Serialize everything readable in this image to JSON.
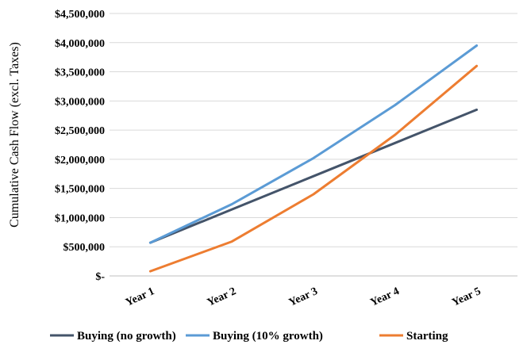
{
  "chart_data": {
    "type": "line",
    "title": "",
    "xlabel": "",
    "ylabel": "Cumulative Cash Flow (excl. Taxes)",
    "categories": [
      "Year 1",
      "Year 2",
      "Year 3",
      "Year 4",
      "Year 5"
    ],
    "ylim": [
      0,
      4500000
    ],
    "yticks": [
      0,
      500000,
      1000000,
      1500000,
      2000000,
      2500000,
      3000000,
      3500000,
      4000000,
      4500000
    ],
    "ytick_labels": [
      "$-",
      "$500,000",
      "$1,000,000",
      "$1,500,000",
      "$2,000,000",
      "$2,500,000",
      "$3,000,000",
      "$3,500,000",
      "$4,000,000",
      "$4,500,000"
    ],
    "grid": "horizontal",
    "legend_position": "bottom",
    "series": [
      {
        "name": "Buying (no growth)",
        "color": "#44546a",
        "values": [
          570000,
          1140000,
          1710000,
          2280000,
          2850000
        ]
      },
      {
        "name": "Buying (10% growth)",
        "color": "#5b9bd5",
        "values": [
          570000,
          1230000,
          2020000,
          2930000,
          3950000
        ]
      },
      {
        "name": "Starting",
        "color": "#ed7d31",
        "values": [
          80000,
          590000,
          1400000,
          2420000,
          3600000
        ]
      }
    ]
  }
}
